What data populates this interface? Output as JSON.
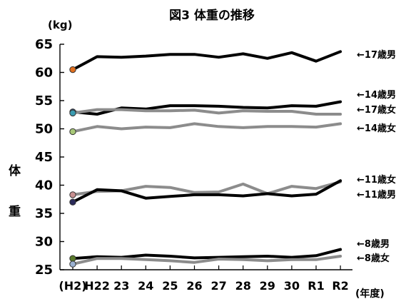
{
  "chart_data": {
    "type": "line",
    "title": "図3 体重の推移",
    "unit": "(kg)",
    "ylabel_chars": [
      "体",
      "重"
    ],
    "xlabel": "(年度)",
    "categories": [
      "(H2)",
      "H22",
      "23",
      "24",
      "25",
      "26",
      "27",
      "28",
      "29",
      "30",
      "R1",
      "R2"
    ],
    "ylim": [
      25,
      65
    ],
    "yticks": [
      25,
      30,
      35,
      40,
      45,
      50,
      55,
      60,
      65
    ],
    "grid": false,
    "legend_position": "right",
    "series": [
      {
        "name": "17歳男",
        "legend_label": "←17歳男",
        "color": "#000000",
        "marker_color": "#e07020",
        "values": [
          60.5,
          62.8,
          62.7,
          62.9,
          63.2,
          63.2,
          62.7,
          63.3,
          62.5,
          63.5,
          62.0,
          63.7
        ]
      },
      {
        "name": "14歳男",
        "legend_label": "←14歳男",
        "color": "#000000",
        "marker_color": "#2e4a7a",
        "values": [
          53.0,
          52.6,
          53.7,
          53.5,
          54.1,
          54.1,
          54.0,
          53.8,
          53.7,
          54.1,
          54.0,
          54.8
        ]
      },
      {
        "name": "17歳女",
        "legend_label": "←17歳女",
        "color": "#8c8c8c",
        "marker_color": "#3a9bb0",
        "values": [
          52.8,
          53.4,
          53.4,
          53.2,
          53.2,
          53.3,
          52.8,
          53.2,
          53.1,
          53.1,
          52.6,
          52.6
        ]
      },
      {
        "name": "14歳女",
        "legend_label": "←14歳女",
        "color": "#8c8c8c",
        "marker_color": "#a8c878",
        "values": [
          49.5,
          50.4,
          50.0,
          50.3,
          50.2,
          50.9,
          50.4,
          50.2,
          50.4,
          50.4,
          50.3,
          50.9
        ]
      },
      {
        "name": "11歳女",
        "legend_label": "←11歳女",
        "color": "#8c8c8c",
        "marker_color": "#c89090",
        "values": [
          38.3,
          38.9,
          39.0,
          39.8,
          39.6,
          38.7,
          38.8,
          40.2,
          38.5,
          39.8,
          39.4,
          40.6
        ]
      },
      {
        "name": "11歳男",
        "legend_label": "←11歳男",
        "color": "#000000",
        "marker_color": "#2a2a5a",
        "values": [
          37.0,
          39.2,
          39.0,
          37.7,
          38.0,
          38.3,
          38.3,
          38.1,
          38.5,
          38.1,
          38.4,
          40.8
        ]
      },
      {
        "name": "8歳男",
        "legend_label": "←8歳男",
        "color": "#000000",
        "marker_color": "#5a7a2a",
        "values": [
          27.0,
          27.3,
          27.2,
          27.6,
          27.4,
          27.1,
          27.2,
          27.3,
          27.4,
          27.2,
          27.5,
          28.6
        ]
      },
      {
        "name": "8歳女",
        "legend_label": "←8歳女",
        "color": "#8c8c8c",
        "marker_color": "#9ab0d0",
        "values": [
          26.0,
          27.0,
          27.0,
          26.8,
          26.6,
          26.3,
          26.9,
          26.8,
          26.6,
          26.8,
          26.8,
          27.4
        ]
      }
    ]
  }
}
